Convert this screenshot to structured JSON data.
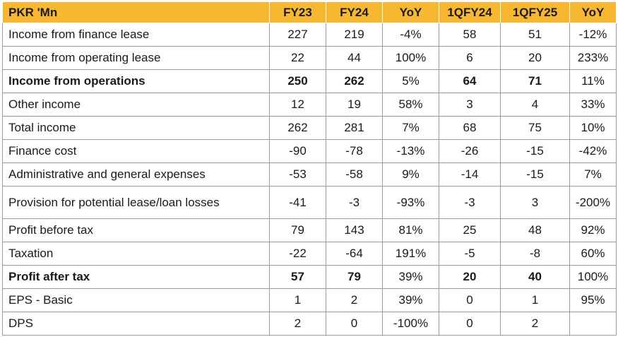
{
  "columns": [
    "PKR 'Mn",
    "FY23",
    "FY24",
    "YoY",
    "1QFY24",
    "1QFY25",
    "YoY"
  ],
  "rows": [
    {
      "label": "Income from finance lease",
      "fy23": "227",
      "fy24": "219",
      "yoy": "-4%",
      "q24": "58",
      "q25": "51",
      "qyoy": "-12%"
    },
    {
      "label": "Income from operating lease",
      "fy23": "22",
      "fy24": "44",
      "yoy": "100%",
      "q24": "6",
      "q25": "20",
      "qyoy": "233%"
    },
    {
      "label": "Income from operations",
      "fy23": "250",
      "fy24": "262",
      "yoy": "5%",
      "q24": "64",
      "q25": "71",
      "qyoy": "11%"
    },
    {
      "label": "Other income",
      "fy23": "12",
      "fy24": "19",
      "yoy": "58%",
      "q24": "3",
      "q25": "4",
      "qyoy": "33%"
    },
    {
      "label": "Total income",
      "fy23": "262",
      "fy24": "281",
      "yoy": "7%",
      "q24": "68",
      "q25": "75",
      "qyoy": "10%"
    },
    {
      "label": "Finance cost",
      "fy23": "-90",
      "fy24": "-78",
      "yoy": "-13%",
      "q24": "-26",
      "q25": "-15",
      "qyoy": "-42%"
    },
    {
      "label": "Administrative and general expenses",
      "fy23": "-53",
      "fy24": "-58",
      "yoy": "9%",
      "q24": "-14",
      "q25": "-15",
      "qyoy": "7%"
    },
    {
      "label": "Provision for potential lease/loan losses",
      "fy23": "-41",
      "fy24": "-3",
      "yoy": "-93%",
      "q24": "-3",
      "q25": "3",
      "qyoy": "-200%"
    },
    {
      "label": "Profit before tax",
      "fy23": "79",
      "fy24": "143",
      "yoy": "81%",
      "q24": "25",
      "q25": "48",
      "qyoy": "92%"
    },
    {
      "label": "Taxation",
      "fy23": "-22",
      "fy24": "-64",
      "yoy": "191%",
      "q24": "-5",
      "q25": "-8",
      "qyoy": "60%"
    },
    {
      "label": "Profit after tax",
      "fy23": "57",
      "fy24": "79",
      "yoy": "39%",
      "q24": "20",
      "q25": "40",
      "qyoy": "100%"
    },
    {
      "label": "EPS - Basic",
      "fy23": "1",
      "fy24": "2",
      "yoy": "39%",
      "q24": "0",
      "q25": "1",
      "qyoy": "95%"
    },
    {
      "label": "DPS",
      "fy23": "2",
      "fy24": "0",
      "yoy": "-100%",
      "q24": "0",
      "q25": "2",
      "qyoy": ""
    }
  ],
  "colors": {
    "header_bg": "#f7b731",
    "border": "#9a9a9a"
  }
}
